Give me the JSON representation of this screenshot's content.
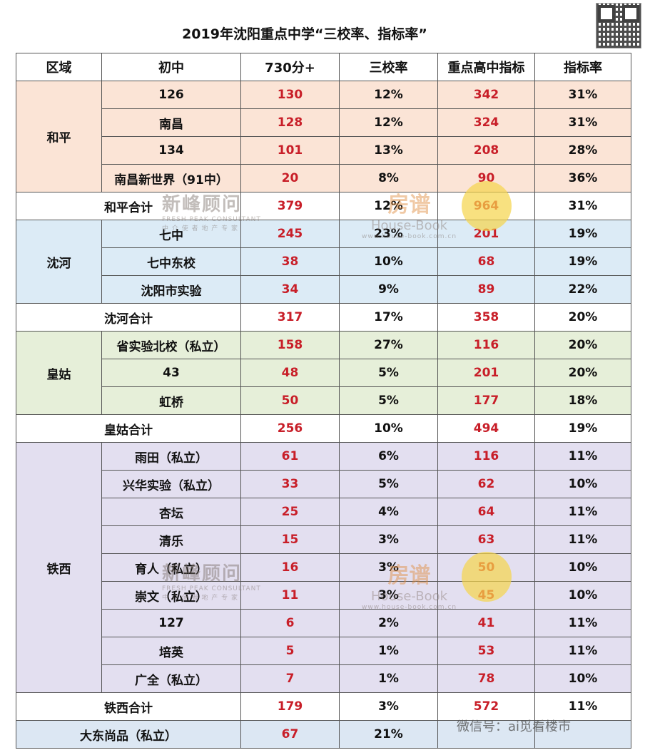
{
  "title": "2019年沈阳重点中学“三校率、指标率”",
  "headers": [
    "区域",
    "初中",
    "730分+",
    "三校率",
    "重点高中指标",
    "指标率"
  ],
  "groups": {
    "heping": {
      "region": "和平",
      "rows": [
        {
          "school": "126",
          "score": "130",
          "rate3": "12%",
          "quota": "342",
          "qrate": "31%"
        },
        {
          "school": "南昌",
          "score": "128",
          "rate3": "12%",
          "quota": "324",
          "qrate": "31%"
        },
        {
          "school": "134",
          "score": "101",
          "rate3": "13%",
          "quota": "208",
          "qrate": "28%"
        },
        {
          "school": "南昌新世界（91中）",
          "score": "20",
          "rate3": "8%",
          "quota": "90",
          "qrate": "36%"
        }
      ],
      "total": {
        "school": "和平合计",
        "score": "379",
        "rate3": "12%",
        "quota": "964",
        "qrate": "31%"
      }
    },
    "shenhe": {
      "region": "沈河",
      "rows": [
        {
          "school": "七中",
          "score": "245",
          "rate3": "23%",
          "quota": "201",
          "qrate": "19%"
        },
        {
          "school": "七中东校",
          "score": "38",
          "rate3": "10%",
          "quota": "68",
          "qrate": "19%"
        },
        {
          "school": "沈阳市实验",
          "score": "34",
          "rate3": "9%",
          "quota": "89",
          "qrate": "22%"
        }
      ],
      "total": {
        "school": "沈河合计",
        "score": "317",
        "rate3": "17%",
        "quota": "358",
        "qrate": "20%"
      }
    },
    "huanggu": {
      "region": "皇姑",
      "rows": [
        {
          "school": "省实验北校（私立）",
          "score": "158",
          "rate3": "27%",
          "quota": "116",
          "qrate": "20%"
        },
        {
          "school": "43",
          "score": "48",
          "rate3": "5%",
          "quota": "201",
          "qrate": "20%"
        },
        {
          "school": "虹桥",
          "score": "50",
          "rate3": "5%",
          "quota": "177",
          "qrate": "18%"
        }
      ],
      "total": {
        "school": "皇姑合计",
        "score": "256",
        "rate3": "10%",
        "quota": "494",
        "qrate": "19%"
      }
    },
    "tiexi": {
      "region": "铁西",
      "rows": [
        {
          "school": "雨田（私立）",
          "score": "61",
          "rate3": "6%",
          "quota": "116",
          "qrate": "11%"
        },
        {
          "school": "兴华实验（私立）",
          "score": "33",
          "rate3": "5%",
          "quota": "62",
          "qrate": "10%"
        },
        {
          "school": "杏坛",
          "score": "25",
          "rate3": "4%",
          "quota": "64",
          "qrate": "11%"
        },
        {
          "school": "清乐",
          "score": "15",
          "rate3": "3%",
          "quota": "63",
          "qrate": "11%"
        },
        {
          "school": "育人（私立）",
          "score": "16",
          "rate3": "3%",
          "quota": "50",
          "qrate": "10%"
        },
        {
          "school": "崇文（私立）",
          "score": "11",
          "rate3": "3%",
          "quota": "45",
          "qrate": "10%"
        },
        {
          "school": "127",
          "score": "6",
          "rate3": "2%",
          "quota": "41",
          "qrate": "11%"
        },
        {
          "school": "培英",
          "score": "5",
          "rate3": "1%",
          "quota": "53",
          "qrate": "11%"
        },
        {
          "school": "广全（私立）",
          "score": "7",
          "rate3": "1%",
          "quota": "78",
          "qrate": "10%"
        }
      ],
      "total": {
        "school": "铁西合计",
        "score": "179",
        "rate3": "3%",
        "quota": "572",
        "qrate": "11%"
      }
    }
  },
  "dadong": {
    "school": "大东尚品（私立）",
    "score": "67",
    "rate3": "21%"
  },
  "watermarks": {
    "brand": "新峰顾问",
    "brand_en": "FRESH PEAK CONSULTANT",
    "brand_sub": "中 介 使 者   地 产 专 家",
    "hb": "房谱",
    "hb_en": "House-Book",
    "hb_url": "www.house-book.com.cn",
    "footer": "微信号：ai觅看楼市"
  },
  "colors": {
    "heping": "#fbe4d6",
    "shenhe": "#dcebf6",
    "huanggu": "#e6efd9",
    "tiexi": "#e3dff0",
    "highlight": "#c81e28"
  }
}
